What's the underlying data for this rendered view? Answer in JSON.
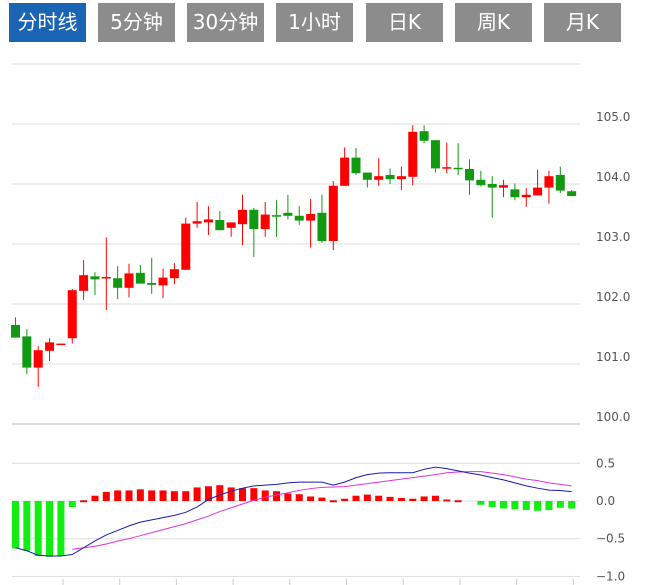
{
  "tabs": [
    {
      "label": "分时线",
      "active": true
    },
    {
      "label": "5分钟",
      "active": false
    },
    {
      "label": "30分钟",
      "active": false
    },
    {
      "label": "1小时",
      "active": false
    },
    {
      "label": "日K",
      "active": false
    },
    {
      "label": "周K",
      "active": false
    },
    {
      "label": "月K",
      "active": false
    }
  ],
  "colors": {
    "up": "#ff0000",
    "down": "#119911",
    "hist_up": "#ff0000",
    "hist_down": "#11ee11",
    "dif": "#1a1aaa",
    "dea": "#dd33dd",
    "active_tab": "#1a64b4",
    "tab": "#8c8c8c"
  },
  "chart_data": [
    {
      "type": "candlestick",
      "title": "",
      "ylim": [
        100.0,
        106.0
      ],
      "yticks": [
        "105.0",
        "104.0",
        "103.0",
        "102.0",
        "101.0",
        "100.0"
      ],
      "ytick_values": [
        105,
        104,
        103,
        102,
        101,
        100
      ],
      "grid": true,
      "ohlc": [
        [
          101.65,
          101.78,
          101.44,
          101.44
        ],
        [
          101.46,
          101.58,
          100.83,
          100.94
        ],
        [
          100.94,
          101.3,
          100.62,
          101.23
        ],
        [
          101.22,
          101.43,
          101.05,
          101.36
        ],
        [
          101.34,
          101.34,
          101.34,
          101.34
        ],
        [
          101.43,
          102.25,
          101.34,
          102.23
        ],
        [
          102.22,
          102.73,
          102.07,
          102.48
        ],
        [
          102.46,
          102.53,
          102.15,
          102.41
        ],
        [
          102.43,
          103.11,
          101.9,
          102.45
        ],
        [
          102.43,
          102.63,
          102.08,
          102.27
        ],
        [
          102.27,
          102.67,
          102.11,
          102.51
        ],
        [
          102.52,
          102.65,
          102.34,
          102.34
        ],
        [
          102.35,
          102.77,
          102.17,
          102.32
        ],
        [
          102.31,
          102.59,
          102.1,
          102.44
        ],
        [
          102.43,
          102.68,
          102.33,
          102.58
        ],
        [
          102.57,
          103.44,
          102.57,
          103.34
        ],
        [
          103.34,
          103.7,
          103.27,
          103.38
        ],
        [
          103.36,
          103.63,
          103.15,
          103.41
        ],
        [
          103.4,
          103.55,
          103.23,
          103.23
        ],
        [
          103.27,
          103.36,
          103.12,
          103.36
        ],
        [
          103.33,
          103.82,
          102.98,
          103.57
        ],
        [
          103.57,
          103.6,
          102.78,
          103.25
        ],
        [
          103.25,
          103.7,
          103.12,
          103.49
        ],
        [
          103.48,
          103.73,
          103.12,
          103.46
        ],
        [
          103.52,
          103.82,
          103.41,
          103.47
        ],
        [
          103.47,
          103.63,
          103.32,
          103.39
        ],
        [
          103.39,
          103.75,
          102.94,
          103.5
        ],
        [
          103.52,
          103.82,
          103.02,
          103.05
        ],
        [
          103.05,
          104.05,
          102.9,
          103.97
        ],
        [
          103.97,
          104.61,
          103.97,
          104.44
        ],
        [
          104.44,
          104.6,
          104.15,
          104.18
        ],
        [
          104.19,
          104.19,
          103.94,
          104.07
        ],
        [
          104.07,
          104.43,
          103.97,
          104.13
        ],
        [
          104.15,
          104.26,
          104.0,
          104.08
        ],
        [
          104.08,
          104.29,
          103.9,
          104.13
        ],
        [
          104.12,
          104.98,
          103.98,
          104.87
        ],
        [
          104.88,
          104.98,
          104.68,
          104.72
        ],
        [
          104.73,
          104.73,
          104.19,
          104.26
        ],
        [
          104.26,
          104.69,
          104.18,
          104.28
        ],
        [
          104.27,
          104.68,
          104.15,
          104.25
        ],
        [
          104.25,
          104.41,
          103.82,
          104.06
        ],
        [
          104.07,
          104.22,
          103.96,
          103.98
        ],
        [
          104.0,
          104.13,
          103.44,
          103.94
        ],
        [
          103.94,
          104.07,
          103.78,
          103.98
        ],
        [
          103.91,
          104.01,
          103.73,
          103.78
        ],
        [
          103.78,
          103.93,
          103.62,
          103.82
        ],
        [
          103.81,
          104.24,
          103.81,
          103.94
        ],
        [
          103.94,
          104.22,
          103.67,
          104.13
        ],
        [
          104.15,
          104.29,
          103.85,
          103.89
        ],
        [
          103.88,
          103.9,
          103.8,
          103.8
        ]
      ]
    },
    {
      "type": "macd",
      "ylim": [
        -1.0,
        1.0
      ],
      "yticks": [
        "0.5",
        "0.0",
        "−0.5",
        "−1.0"
      ],
      "ytick_values": [
        0.5,
        0.0,
        -0.5,
        -1.0
      ],
      "grid": true,
      "histogram": [
        -0.63,
        -0.66,
        -0.73,
        -0.74,
        -0.73,
        -0.08,
        0.01,
        0.07,
        0.12,
        0.14,
        0.14,
        0.155,
        0.14,
        0.14,
        0.13,
        0.13,
        0.18,
        0.195,
        0.21,
        0.18,
        0.17,
        0.17,
        0.14,
        0.13,
        0.1,
        0.09,
        0.06,
        0.045,
        0.01,
        0.03,
        0.07,
        0.085,
        0.07,
        0.055,
        0.04,
        0.03,
        0.06,
        0.07,
        0.02,
        0.01,
        0,
        -0.05,
        -0.08,
        -0.1,
        -0.11,
        -0.12,
        -0.13,
        -0.12,
        -0.09,
        -0.1
      ],
      "dif": [
        -0.62,
        -0.66,
        -0.72,
        -0.73,
        -0.73,
        -0.71,
        -0.62,
        -0.53,
        -0.45,
        -0.39,
        -0.33,
        -0.28,
        -0.25,
        -0.22,
        -0.19,
        -0.15,
        -0.08,
        0.02,
        0.08,
        0.13,
        0.17,
        0.2,
        0.21,
        0.22,
        0.24,
        0.25,
        0.25,
        0.25,
        0.21,
        0.25,
        0.31,
        0.35,
        0.37,
        0.375,
        0.375,
        0.375,
        0.42,
        0.45,
        0.43,
        0.4,
        0.37,
        0.345,
        0.31,
        0.28,
        0.24,
        0.2,
        0.17,
        0.145,
        0.14,
        0.125
      ],
      "dea": [
        null,
        null,
        null,
        null,
        null,
        -0.64,
        -0.62,
        -0.6,
        -0.57,
        -0.53,
        -0.5,
        -0.46,
        -0.42,
        -0.38,
        -0.34,
        -0.3,
        -0.25,
        -0.2,
        -0.14,
        -0.09,
        -0.04,
        0.01,
        0.05,
        0.08,
        0.11,
        0.14,
        0.165,
        0.18,
        0.185,
        0.19,
        0.21,
        0.23,
        0.25,
        0.27,
        0.29,
        0.31,
        0.33,
        0.35,
        0.375,
        0.385,
        0.39,
        0.39,
        0.37,
        0.35,
        0.32,
        0.29,
        0.27,
        0.24,
        0.22,
        0.2
      ]
    }
  ]
}
